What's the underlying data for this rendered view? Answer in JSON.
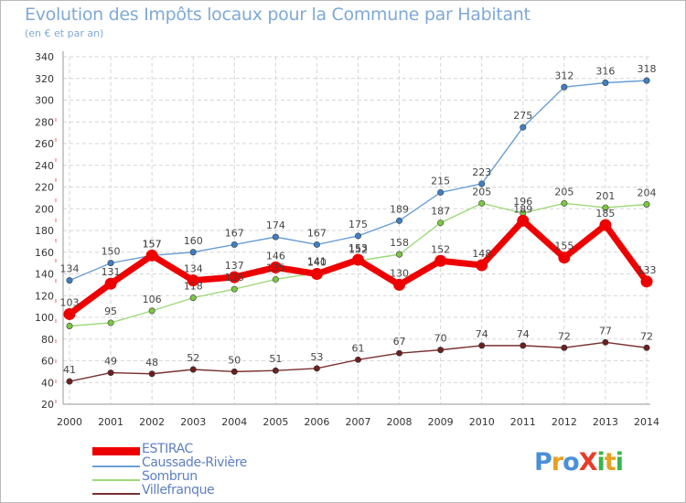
{
  "title": "Evolution des Impôts locaux pour la Commune par Habitant",
  "subtitle": "(en € et par an)",
  "logo": {
    "text": "ProXiti",
    "letters": [
      {
        "ch": "P",
        "color": "#4a90d9"
      },
      {
        "ch": "r",
        "color": "#e8a020"
      },
      {
        "ch": "o",
        "color": "#4a90d9"
      },
      {
        "ch": "X",
        "color": "#e83c2a"
      },
      {
        "ch": "i",
        "color": "#3bb54a"
      },
      {
        "ch": "t",
        "color": "#e8a020"
      },
      {
        "ch": "i",
        "color": "#3bb54a"
      }
    ]
  },
  "chart_data": {
    "type": "line",
    "title": "Evolution des Impôts locaux pour la Commune par Habitant",
    "subtitle": "(en € et par an)",
    "x": [
      2000,
      2001,
      2002,
      2003,
      2004,
      2005,
      2006,
      2007,
      2008,
      2009,
      2010,
      2011,
      2012,
      2013,
      2014
    ],
    "ylim": [
      20,
      340
    ],
    "yticks": [
      20,
      40,
      60,
      80,
      100,
      120,
      140,
      160,
      180,
      200,
      220,
      240,
      260,
      280,
      300,
      320,
      340
    ],
    "grid": true,
    "legend_position": "bottom-left",
    "series": [
      {
        "name": "Caussade-Rivière",
        "color": "#6a9fd4",
        "marker": "#3f7fc4",
        "values": [
          134,
          150,
          157,
          160,
          167,
          174,
          167,
          175,
          189,
          215,
          223,
          275,
          312,
          316,
          318
        ]
      },
      {
        "name": "Sombrun",
        "color": "#9fd87a",
        "marker": "#7cc840",
        "values": [
          92,
          95,
          106,
          118,
          126,
          135,
          141,
          152,
          158,
          187,
          205,
          196,
          205,
          201,
          204
        ]
      },
      {
        "name": "Villefranque",
        "color": "#7a3030",
        "marker": "#6a2020",
        "values": [
          41,
          49,
          48,
          52,
          50,
          51,
          53,
          61,
          67,
          70,
          74,
          74,
          72,
          77,
          72
        ]
      },
      {
        "name": "ESTIRAC",
        "color": "#ee0000",
        "marker": "#ee0000",
        "values": [
          103,
          131,
          157,
          134,
          137,
          146,
          140,
          153,
          130,
          152,
          148,
          189,
          155,
          185,
          133
        ]
      }
    ],
    "labels": [
      {
        "series": "Caussade-Rivière",
        "values": [
          "134",
          "150",
          "157",
          "160",
          "167",
          "174",
          "167",
          "175",
          "189",
          "215",
          "223",
          "275",
          "312",
          "316",
          "318"
        ]
      },
      {
        "series": "Sombrun",
        "values": [
          "",
          "95",
          "106",
          "118",
          "126",
          "135",
          "141",
          "152",
          "158",
          "187",
          "205",
          "196",
          "205",
          "201",
          "204"
        ]
      },
      {
        "series": "Villefranque",
        "values": [
          "41",
          "49",
          "48",
          "52",
          "50",
          "51",
          "53",
          "61",
          "67",
          "70",
          "74",
          "74",
          "72",
          "77",
          "72"
        ]
      },
      {
        "series": "ESTIRAC",
        "values": [
          "103",
          "131",
          "157",
          "134",
          "137",
          "146",
          "140",
          "153",
          "130",
          "152",
          "148",
          "189",
          "155",
          "185",
          "133"
        ]
      }
    ]
  },
  "legend": {
    "items": [
      {
        "label": "ESTIRAC",
        "color": "#ee0000"
      },
      {
        "label": "Caussade-Rivière",
        "color": "#6a9fd4"
      },
      {
        "label": "Sombrun",
        "color": "#9fd87a"
      },
      {
        "label": "Villefranque",
        "color": "#7a3030"
      }
    ]
  }
}
